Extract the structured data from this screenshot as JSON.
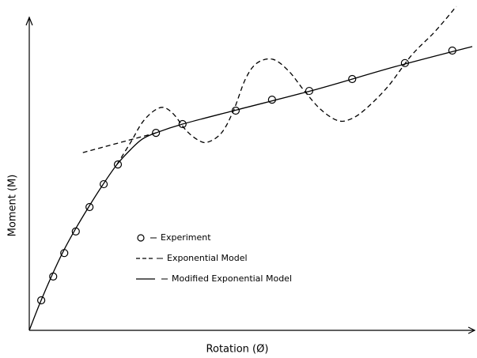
{
  "chart_data": {
    "type": "line",
    "x_label": "Rotation (Ø)",
    "y_label": "Moment (M)",
    "xlim": [
      0,
      100
    ],
    "ylim": [
      0,
      100
    ],
    "series": [
      {
        "name": "Experiment",
        "marker": "circle",
        "color": "#000000",
        "x": [
          2.7,
          5.4,
          7.9,
          10.5,
          13.6,
          16.8,
          20.0,
          28.6,
          34.6,
          46.6,
          54.8,
          63.2,
          72.9,
          84.8,
          95.5
        ],
        "values": [
          9.6,
          17.2,
          24.7,
          31.6,
          39.4,
          46.7,
          53.0,
          63.1,
          65.9,
          70.2,
          73.7,
          76.5,
          80.3,
          85.4,
          89.4
        ]
      },
      {
        "name": "Exponential Model",
        "dash": "dashed",
        "color": "#000000",
        "x": [
          19.8,
          22.9,
          25.5,
          28.2,
          30.4,
          32.7,
          35.4,
          38.0,
          40.2,
          43.4,
          46.1,
          48.8,
          51.4,
          55.0,
          58.6,
          62.1,
          65.7,
          69.3,
          72.0,
          75.5,
          80.9,
          86.3,
          91.6,
          96.4
        ],
        "values": [
          53.0,
          60.1,
          66.4,
          70.2,
          71.2,
          68.9,
          63.9,
          60.9,
          60.1,
          63.1,
          70.2,
          80.3,
          85.4,
          86.6,
          82.8,
          76.5,
          70.7,
          67.2,
          67.2,
          70.2,
          77.8,
          87.9,
          95.5,
          103.5
        ]
      },
      {
        "name": "Modified Exponential Model",
        "dash": "solid",
        "color": "#000000",
        "x": [
          0,
          2.3,
          5.0,
          7.7,
          10.4,
          13.4,
          16.6,
          19.8,
          22.9,
          25.5,
          28.6,
          34.6,
          47.0,
          64.8,
          82.7,
          100
        ],
        "values": [
          0,
          8.3,
          17.2,
          25.3,
          32.3,
          39.4,
          46.5,
          53.0,
          57.8,
          61.1,
          63.1,
          65.9,
          70.5,
          77.0,
          84.3,
          90.7
        ]
      },
      {
        "dash": "dashed",
        "color": "#000000",
        "x": [
          12.1,
          28.6
        ],
        "values": [
          56.8,
          63.1
        ]
      }
    ]
  }
}
